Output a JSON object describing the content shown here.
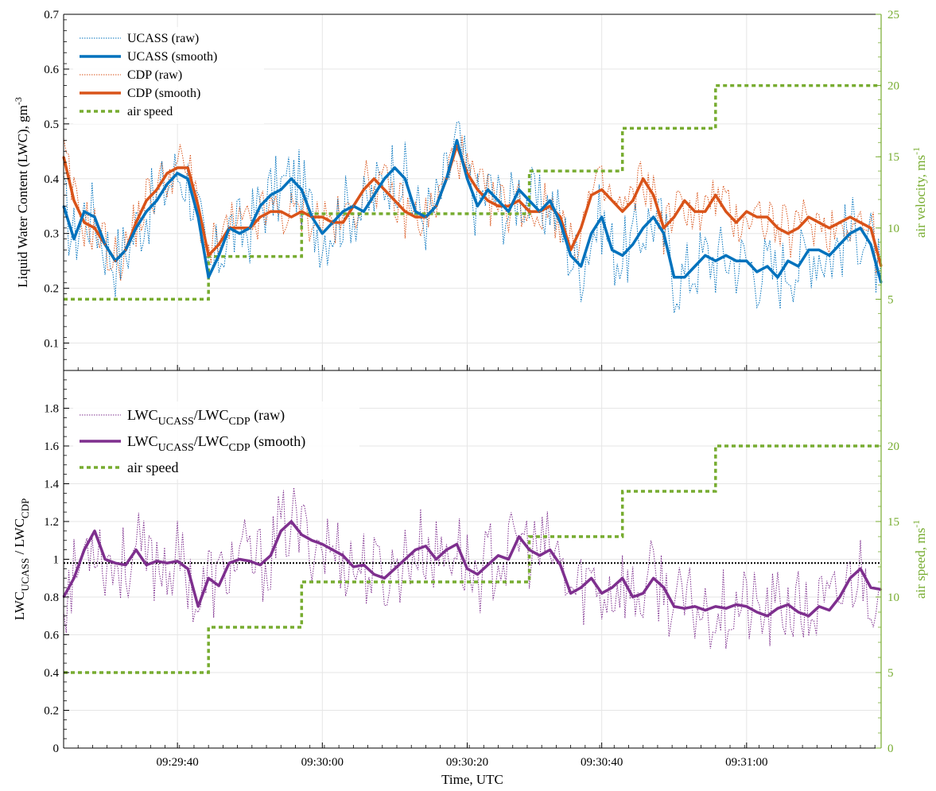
{
  "chart_data": [
    {
      "type": "line",
      "ylabel": "Liquid Water Content (LWC), gm",
      "ylabel_sup": "-3",
      "y2label": "air velocity, ms",
      "y2label_sup": "-1",
      "ylim": [
        0.05,
        0.7
      ],
      "yticks": [
        "0.1",
        "0.2",
        "0.3",
        "0.4",
        "0.5",
        "0.6",
        "0.7"
      ],
      "y2lim": [
        0,
        25
      ],
      "y2ticks": [
        "5",
        "10",
        "15",
        "20",
        "25"
      ],
      "x_range_seconds": [
        1,
        80
      ],
      "grid": true,
      "legend_placement": "top-left",
      "colors": {
        "ucass": "#0072bd",
        "cdp": "#d95319",
        "air": "#77ac30"
      },
      "legend": [
        "UCASS (raw)",
        "UCASS (smooth)",
        "CDP (raw)",
        "CDP (smooth)",
        "air speed"
      ],
      "series": [
        {
          "name": "UCASS (smooth)",
          "x": [
            1,
            2,
            3,
            4,
            5,
            6,
            7,
            8,
            9,
            10,
            11,
            12,
            13,
            14,
            15,
            16,
            17,
            18,
            19,
            20,
            21,
            22,
            23,
            24,
            25,
            26,
            27,
            28,
            29,
            30,
            31,
            32,
            33,
            34,
            35,
            36,
            37,
            38,
            39,
            40,
            41,
            42,
            43,
            44,
            45,
            46,
            47,
            48,
            49,
            50,
            51,
            52,
            53,
            54,
            55,
            56,
            57,
            58,
            59,
            60,
            61,
            62,
            63,
            64,
            65,
            66,
            67,
            68,
            69,
            70,
            71,
            72,
            73,
            74,
            75,
            76,
            77,
            78,
            79,
            80
          ],
          "y": [
            0.35,
            0.29,
            0.34,
            0.33,
            0.28,
            0.25,
            0.27,
            0.31,
            0.34,
            0.36,
            0.39,
            0.41,
            0.4,
            0.33,
            0.22,
            0.26,
            0.31,
            0.3,
            0.31,
            0.35,
            0.37,
            0.38,
            0.4,
            0.38,
            0.33,
            0.3,
            0.32,
            0.34,
            0.35,
            0.34,
            0.37,
            0.4,
            0.42,
            0.4,
            0.34,
            0.33,
            0.35,
            0.4,
            0.47,
            0.4,
            0.35,
            0.38,
            0.36,
            0.34,
            0.38,
            0.36,
            0.34,
            0.36,
            0.32,
            0.26,
            0.24,
            0.3,
            0.33,
            0.27,
            0.26,
            0.28,
            0.31,
            0.33,
            0.3,
            0.22,
            0.22,
            0.24,
            0.26,
            0.25,
            0.26,
            0.25,
            0.25,
            0.23,
            0.24,
            0.22,
            0.25,
            0.24,
            0.27,
            0.27,
            0.26,
            0.28,
            0.3,
            0.31,
            0.28,
            0.21
          ]
        },
        {
          "name": "CDP (smooth)",
          "x": [
            1,
            2,
            3,
            4,
            5,
            6,
            7,
            8,
            9,
            10,
            11,
            12,
            13,
            14,
            15,
            16,
            17,
            18,
            19,
            20,
            21,
            22,
            23,
            24,
            25,
            26,
            27,
            28,
            29,
            30,
            31,
            32,
            33,
            34,
            35,
            36,
            37,
            38,
            39,
            40,
            41,
            42,
            43,
            44,
            45,
            46,
            47,
            48,
            49,
            50,
            51,
            52,
            53,
            54,
            55,
            56,
            57,
            58,
            59,
            60,
            61,
            62,
            63,
            64,
            65,
            66,
            67,
            68,
            69,
            70,
            71,
            72,
            73,
            74,
            75,
            76,
            77,
            78,
            79,
            80
          ],
          "y": [
            0.44,
            0.36,
            0.32,
            0.31,
            0.28,
            0.25,
            0.27,
            0.32,
            0.36,
            0.38,
            0.41,
            0.42,
            0.42,
            0.35,
            0.26,
            0.28,
            0.31,
            0.31,
            0.31,
            0.33,
            0.34,
            0.34,
            0.33,
            0.34,
            0.33,
            0.33,
            0.32,
            0.32,
            0.35,
            0.38,
            0.4,
            0.38,
            0.36,
            0.34,
            0.33,
            0.33,
            0.35,
            0.4,
            0.46,
            0.41,
            0.38,
            0.36,
            0.35,
            0.35,
            0.36,
            0.34,
            0.34,
            0.35,
            0.33,
            0.27,
            0.31,
            0.37,
            0.38,
            0.36,
            0.34,
            0.36,
            0.4,
            0.37,
            0.31,
            0.33,
            0.36,
            0.34,
            0.34,
            0.37,
            0.34,
            0.32,
            0.34,
            0.33,
            0.33,
            0.31,
            0.3,
            0.31,
            0.33,
            0.32,
            0.31,
            0.32,
            0.33,
            0.32,
            0.31,
            0.24
          ]
        },
        {
          "name": "air speed",
          "axis": "right",
          "x": [
            1,
            15,
            15,
            24,
            24,
            46,
            46,
            55,
            55,
            64,
            64,
            73,
            73,
            80
          ],
          "y": [
            5,
            5,
            8,
            8,
            11,
            11,
            14,
            14,
            17,
            17,
            20,
            20,
            20,
            20
          ]
        }
      ]
    },
    {
      "type": "line",
      "ylabel": "LWC",
      "ylabel_sub1": "UCASS",
      "ylabel_mid": " / LWC",
      "ylabel_sub2": "CDP",
      "y2label": "air speed, ms",
      "y2label_sup": "-1",
      "xlabel": "Time, UTC",
      "xticks": [
        "09:29:40",
        "09:30:00",
        "09:30:20",
        "09:30:40",
        "09:31:00"
      ],
      "xtick_seconds": [
        12,
        26,
        40,
        53,
        67
      ],
      "ylim": [
        0,
        2.0
      ],
      "yticks": [
        "0",
        "0.2",
        "0.4",
        "0.6",
        "0.8",
        "1",
        "1.2",
        "1.4",
        "1.6",
        "1.8"
      ],
      "y2lim": [
        0,
        25
      ],
      "y2ticks": [
        "0",
        "5",
        "10",
        "15",
        "20"
      ],
      "reference_line": 0.98,
      "grid": true,
      "legend_placement": "top-left",
      "colors": {
        "ratio": "#7e2f8e",
        "air": "#77ac30",
        "ref": "#000000"
      },
      "legend": [
        {
          "main": "LWC",
          "sub1": "UCASS",
          "mid": "/LWC",
          "sub2": "CDP",
          "tail": " (raw)"
        },
        {
          "main": "LWC",
          "sub1": "UCASS",
          "mid": "/LWC",
          "sub2": "CDP",
          "tail": " (smooth)"
        },
        {
          "text": "air speed"
        }
      ],
      "series": [
        {
          "name": "LWC_UCASS/LWC_CDP (smooth)",
          "x": [
            1,
            2,
            3,
            4,
            5,
            6,
            7,
            8,
            9,
            10,
            11,
            12,
            13,
            14,
            15,
            16,
            17,
            18,
            19,
            20,
            21,
            22,
            23,
            24,
            25,
            26,
            27,
            28,
            29,
            30,
            31,
            32,
            33,
            34,
            35,
            36,
            37,
            38,
            39,
            40,
            41,
            42,
            43,
            44,
            45,
            46,
            47,
            48,
            49,
            50,
            51,
            52,
            53,
            54,
            55,
            56,
            57,
            58,
            59,
            60,
            61,
            62,
            63,
            64,
            65,
            66,
            67,
            68,
            69,
            70,
            71,
            72,
            73,
            74,
            75,
            76,
            77,
            78,
            79,
            80
          ],
          "y": [
            0.8,
            0.9,
            1.05,
            1.15,
            1.0,
            0.98,
            0.97,
            1.05,
            0.97,
            0.99,
            0.98,
            0.99,
            0.95,
            0.75,
            0.9,
            0.86,
            0.98,
            1.0,
            0.99,
            0.97,
            1.02,
            1.15,
            1.2,
            1.13,
            1.1,
            1.08,
            1.05,
            1.02,
            0.96,
            0.97,
            0.92,
            0.9,
            0.95,
            1.0,
            1.05,
            1.07,
            1.0,
            1.05,
            1.08,
            0.95,
            0.92,
            0.97,
            1.02,
            1.0,
            1.12,
            1.05,
            1.02,
            1.05,
            0.97,
            0.82,
            0.85,
            0.9,
            0.82,
            0.85,
            0.9,
            0.8,
            0.82,
            0.9,
            0.85,
            0.75,
            0.74,
            0.75,
            0.73,
            0.75,
            0.74,
            0.76,
            0.75,
            0.72,
            0.7,
            0.74,
            0.76,
            0.72,
            0.7,
            0.75,
            0.73,
            0.8,
            0.9,
            0.95,
            0.85,
            0.84
          ]
        },
        {
          "name": "air speed",
          "axis": "right",
          "x": [
            1,
            15,
            15,
            24,
            24,
            46,
            46,
            55,
            55,
            64,
            64,
            73,
            73,
            80
          ],
          "y": [
            5,
            5,
            8,
            8,
            11,
            11,
            14,
            14,
            17,
            17,
            20,
            20,
            20,
            20
          ]
        }
      ]
    }
  ]
}
